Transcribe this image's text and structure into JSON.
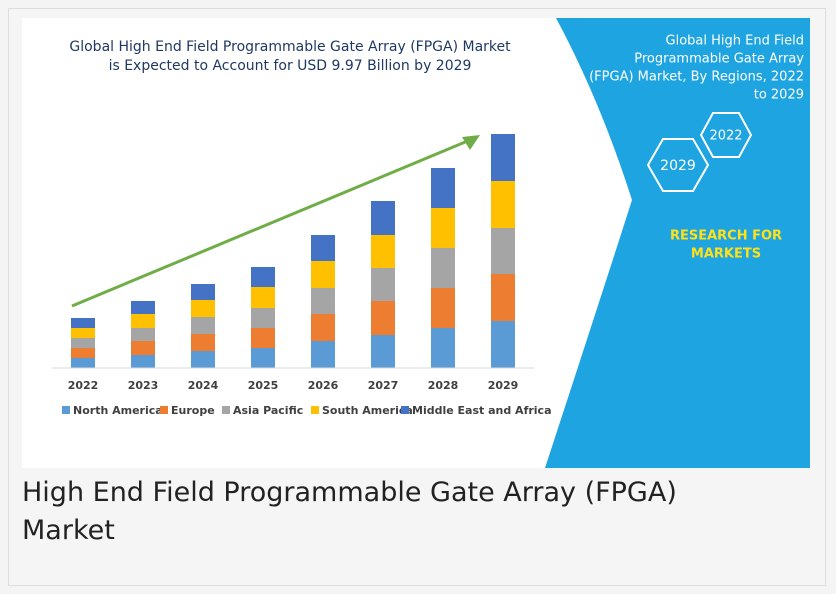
{
  "chart_data": {
    "type": "stacked_bar",
    "title": [
      "Global High End Field Programmable Gate Array (FPGA) Market",
      "is Expected to Account for USD 9.97 Billion by 2029"
    ],
    "categories": [
      "2022",
      "2023",
      "2024",
      "2025",
      "2026",
      "2027",
      "2028",
      "2029"
    ],
    "series": [
      {
        "name": "North America",
        "color": "#5b9bd5",
        "values": [
          10,
          13,
          17,
          20,
          27,
          33,
          40,
          47
        ]
      },
      {
        "name": "Europe",
        "color": "#ed7d31",
        "values": [
          10,
          14,
          17,
          20,
          27,
          34,
          40,
          47
        ]
      },
      {
        "name": "Asia Pacific",
        "color": "#a5a5a5",
        "values": [
          10,
          13,
          17,
          20,
          26,
          33,
          40,
          46
        ]
      },
      {
        "name": "South America",
        "color": "#ffc000",
        "values": [
          10,
          14,
          17,
          21,
          27,
          33,
          40,
          47
        ]
      },
      {
        "name": "Middle East and Africa",
        "color": "#4472c4",
        "values": [
          10,
          13,
          16,
          20,
          26,
          34,
          40,
          47
        ]
      }
    ],
    "ylim": [
      0,
      250
    ],
    "legend": "bottom"
  },
  "side_panel": {
    "title": [
      "Global High End Field",
      "Programmable Gate Array",
      "(FPGA) Market, By Regions, 2022",
      "to 2029"
    ],
    "hexagons": [
      "2029",
      "2022"
    ],
    "brand": [
      "RESEARCH FOR",
      "MARKETS"
    ]
  },
  "caption": [
    "High End Field Programmable Gate Array (FPGA)",
    "Market"
  ]
}
